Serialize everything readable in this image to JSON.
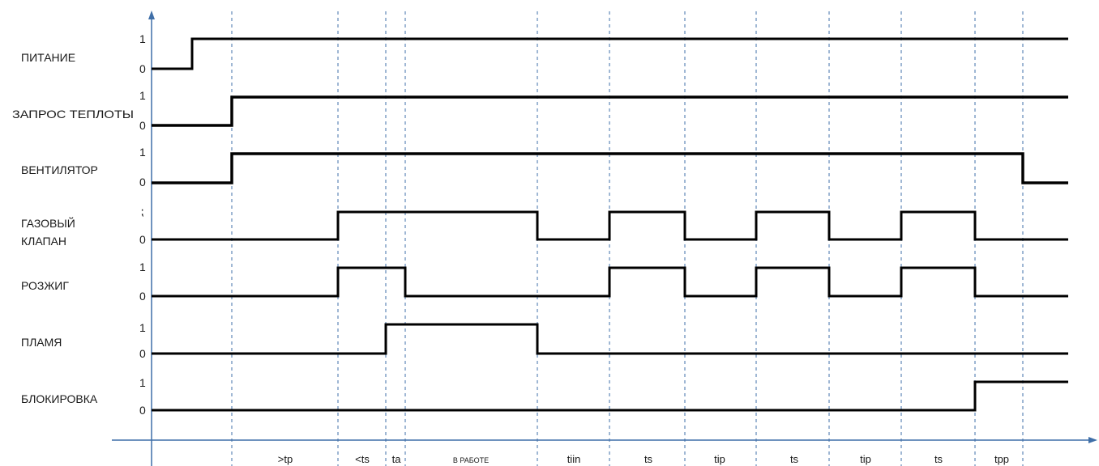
{
  "signals": [
    {
      "name": "ПИТАНИЕ",
      "name_line2": "",
      "lvl_high": "1",
      "lvl_low": "0"
    },
    {
      "name": "ЗАПРОС ТЕПЛОТЫ",
      "name_line2": "",
      "lvl_high": "1",
      "lvl_low": "0"
    },
    {
      "name": "ВЕНТИЛЯТОР",
      "name_line2": "",
      "lvl_high": "1",
      "lvl_low": "0"
    },
    {
      "name": "ГАЗОВЫЙ",
      "name_line2": "КЛАПАН",
      "lvl_high": "⁏",
      "lvl_low": "0"
    },
    {
      "name": "РОЗЖИГ",
      "name_line2": "",
      "lvl_high": "1",
      "lvl_low": "0"
    },
    {
      "name": "ПЛАМЯ",
      "name_line2": "",
      "lvl_high": "1",
      "lvl_low": "0"
    },
    {
      "name": "БЛОКИРОВКА",
      "name_line2": "",
      "lvl_high": "1",
      "lvl_low": "0"
    }
  ],
  "periods": [
    ">tp",
    "<ts",
    "ta",
    "В РАБОТЕ",
    "tiin",
    "ts",
    "tip",
    "ts",
    "tip",
    "ts",
    "tpp"
  ],
  "colors": {
    "signal": "#000000",
    "guide": "#3f6fa8",
    "axis": "#3f6fa8"
  }
}
